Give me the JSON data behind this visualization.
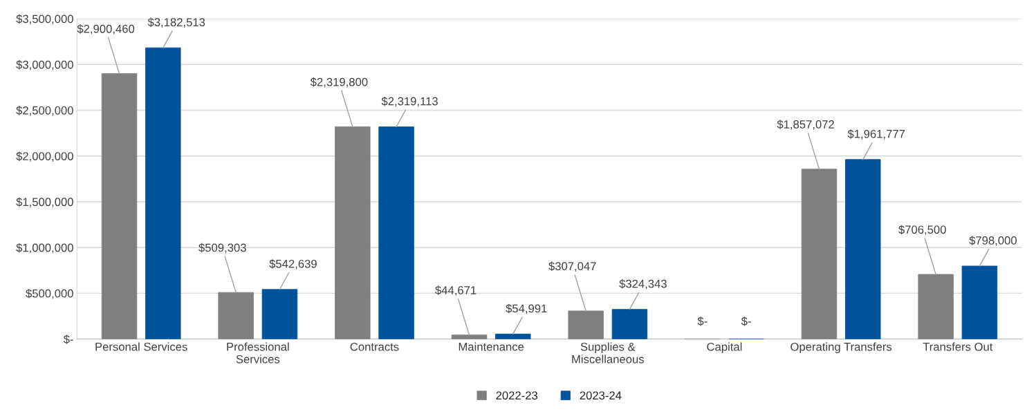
{
  "chart_data": {
    "type": "bar",
    "categories": [
      "Personal Services",
      "Professional Services",
      "Contracts",
      "Maintenance",
      "Supplies & Miscellaneous",
      "Capital",
      "Operating Transfers",
      "Transfers Out"
    ],
    "series": [
      {
        "name": "2022-23",
        "color": "#7f7f7f",
        "values": [
          2900460,
          509303,
          2319800,
          44671,
          307047,
          0,
          1857072,
          706500
        ],
        "value_labels": [
          "$2,900,460",
          "$509,303",
          "$2,319,800",
          "$44,671",
          "$307,047",
          "$-",
          "$1,857,072",
          "$706,500"
        ]
      },
      {
        "name": "2023-24",
        "color": "#00529b",
        "values": [
          3182513,
          542639,
          2319113,
          54991,
          324343,
          0,
          1961777,
          798000
        ],
        "value_labels": [
          "$3,182,513",
          "$542,639",
          "$2,319,113",
          "$54,991",
          "$324,343",
          "$-",
          "$1,961,777",
          "$798,000"
        ]
      }
    ],
    "ylim": [
      0,
      3500000
    ],
    "yticks": [
      {
        "value": 0,
        "label": "$-"
      },
      {
        "value": 500000,
        "label": "$500,000"
      },
      {
        "value": 1000000,
        "label": "$1,000,000"
      },
      {
        "value": 1500000,
        "label": "$1,500,000"
      },
      {
        "value": 2000000,
        "label": "$2,000,000"
      },
      {
        "value": 2500000,
        "label": "$2,500,000"
      },
      {
        "value": 3000000,
        "label": "$3,000,000"
      },
      {
        "value": 3500000,
        "label": "$3,500,000"
      }
    ],
    "grid": "y",
    "legend": "bottom"
  }
}
